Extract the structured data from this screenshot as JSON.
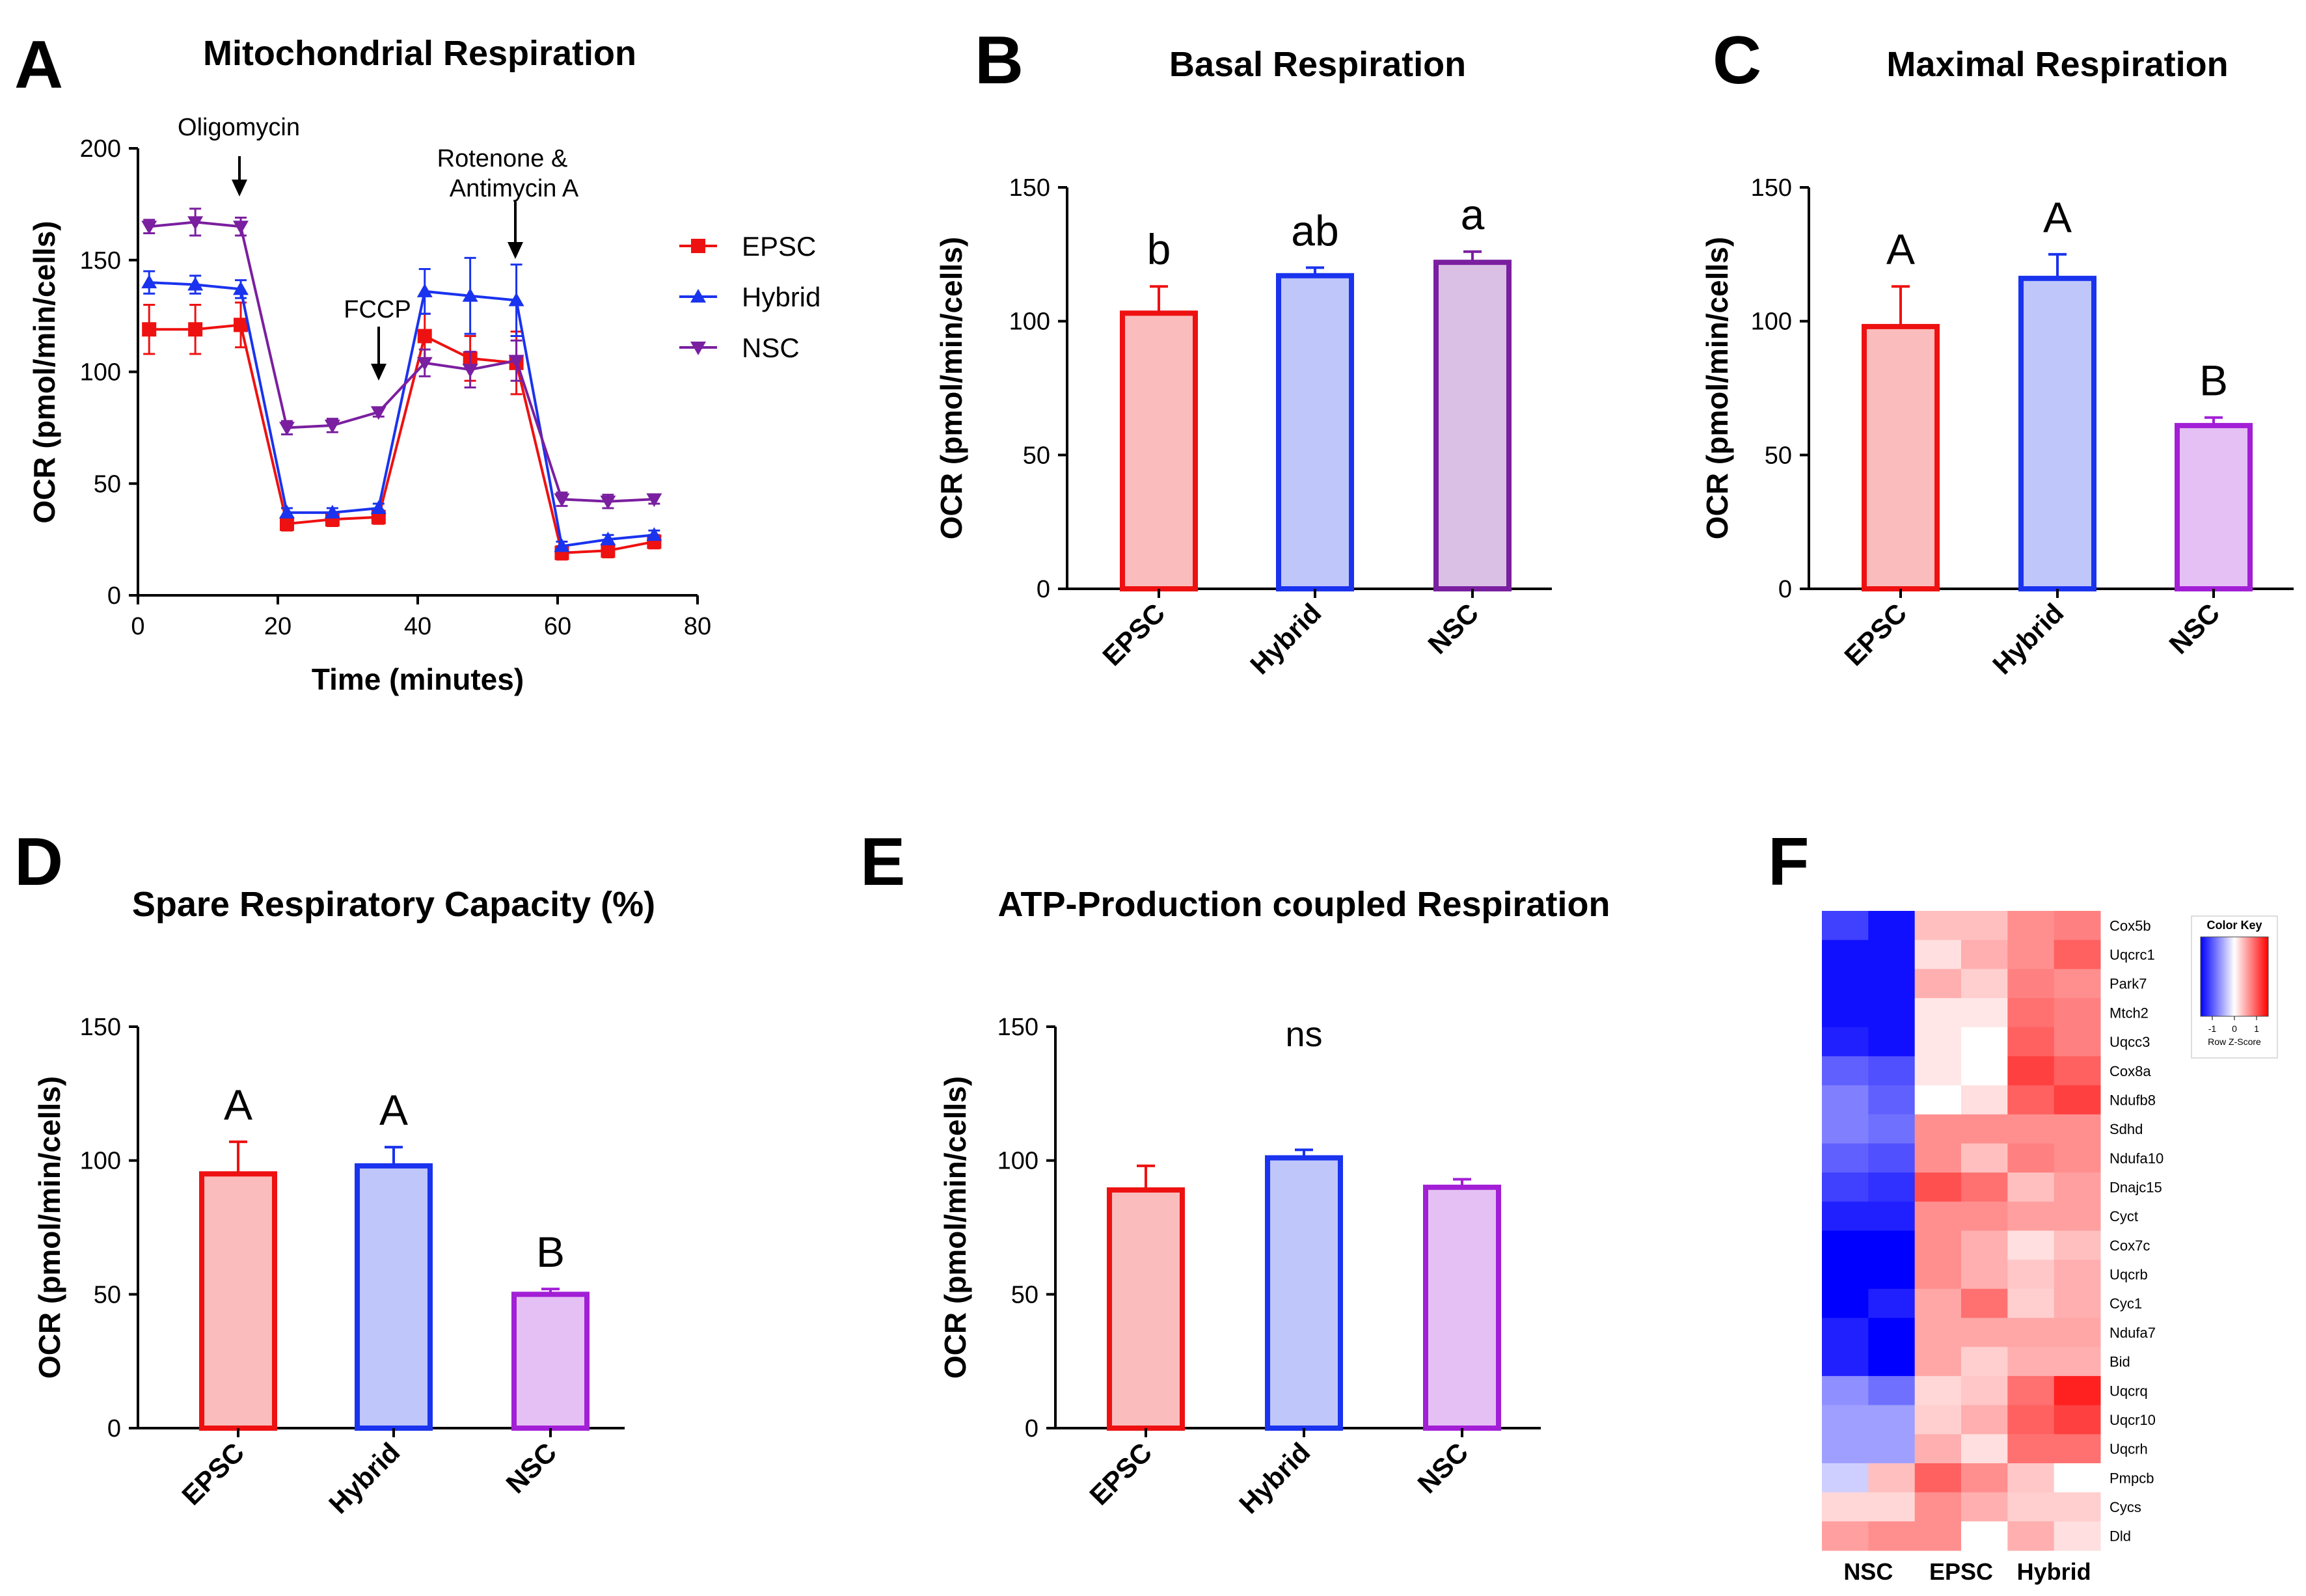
{
  "chart_data": [
    {
      "panel": "A",
      "type": "line",
      "title": "Mitochondrial Respiration",
      "xlabel": "Time (minutes)",
      "ylabel": "OCR (pmol/min/cells)",
      "xlim": [
        0,
        80
      ],
      "ylim": [
        0,
        200
      ],
      "xticks": [
        0,
        20,
        40,
        60,
        80
      ],
      "yticks": [
        0,
        50,
        100,
        150,
        200
      ],
      "x": [
        1.6,
        8.2,
        14.7,
        21.3,
        27.8,
        34.4,
        41.0,
        47.5,
        54.1,
        60.6,
        67.2,
        73.8
      ],
      "series": [
        {
          "name": "EPSC",
          "color": "#ee1111",
          "marker": "square",
          "values": [
            119,
            119,
            121,
            32,
            34,
            35,
            116,
            106,
            104,
            19,
            20,
            24
          ],
          "errors": [
            11,
            11,
            10,
            3,
            3,
            3,
            10,
            10,
            14,
            3,
            3,
            3
          ]
        },
        {
          "name": "Hybrid",
          "color": "#1a33ee",
          "marker": "triangle-up",
          "values": [
            140,
            139,
            137,
            37,
            37,
            39,
            136,
            134,
            132,
            22,
            25,
            27
          ],
          "errors": [
            5,
            4,
            4,
            2,
            2,
            2,
            10,
            17,
            16,
            2,
            2,
            2
          ]
        },
        {
          "name": "NSC",
          "color": "#7a1fa0",
          "marker": "triangle-down",
          "values": [
            165,
            167,
            165,
            75,
            76,
            82,
            104,
            101,
            105,
            43,
            42,
            43
          ],
          "errors": [
            3,
            6,
            4,
            3,
            3,
            2,
            6,
            8,
            9,
            3,
            3,
            2
          ]
        }
      ],
      "annotations": [
        {
          "text": "Oligomycin",
          "x": 14.7,
          "y": 165
        },
        {
          "text": "FCCP",
          "x": 34.4,
          "y": 82
        },
        {
          "text": "Rotenone &",
          "x": 54.1,
          "y": 132
        },
        {
          "text": "Antimycin  A",
          "x": 54.1,
          "y": 132
        }
      ],
      "legend": "right"
    },
    {
      "panel": "B",
      "type": "bar",
      "title": "Basal Respiration",
      "ylabel": "OCR (pmol/min/cells)",
      "categories": [
        "EPSC",
        "Hybrid",
        "NSC"
      ],
      "values": [
        103,
        117,
        122
      ],
      "errors": [
        10,
        3,
        4
      ],
      "significance": [
        "b",
        "ab",
        "a"
      ],
      "ylim": [
        0,
        150
      ],
      "yticks": [
        0,
        50,
        100,
        150
      ]
    },
    {
      "panel": "C",
      "type": "bar",
      "title": "Maximal Respiration",
      "ylabel": "OCR (pmol/min/cells)",
      "categories": [
        "EPSC",
        "Hybrid",
        "NSC"
      ],
      "values": [
        98,
        116,
        61
      ],
      "errors": [
        15,
        9,
        3
      ],
      "significance": [
        "A",
        "A",
        "B"
      ],
      "ylim": [
        0,
        150
      ],
      "yticks": [
        0,
        50,
        100,
        150
      ]
    },
    {
      "panel": "D",
      "type": "bar",
      "title": "Spare Respiratory Capacity (%)",
      "ylabel": "OCR (pmol/min/cells)",
      "categories": [
        "EPSC",
        "Hybrid",
        "NSC"
      ],
      "values": [
        95,
        98,
        50
      ],
      "errors": [
        12,
        7,
        2
      ],
      "significance": [
        "A",
        "A",
        "B"
      ],
      "ylim": [
        0,
        150
      ],
      "yticks": [
        0,
        50,
        100,
        150
      ]
    },
    {
      "panel": "E",
      "type": "bar",
      "title": "ATP-Production coupled Respiration",
      "ylabel": "OCR (pmol/min/cells)",
      "categories": [
        "EPSC",
        "Hybrid",
        "NSC"
      ],
      "values": [
        89,
        101,
        90
      ],
      "errors": [
        9,
        3,
        3
      ],
      "annotation": "ns",
      "ylim": [
        0,
        150
      ],
      "yticks": [
        0,
        50,
        100,
        150
      ]
    },
    {
      "panel": "F",
      "type": "heatmap",
      "column_groups": [
        "NSC",
        "EPSC",
        "Hybrid"
      ],
      "columns_per_group": 2,
      "rows": [
        "Cox5b",
        "Uqcrc1",
        "Park7",
        "Mtch2",
        "Uqcc3",
        "Cox8a",
        "Ndufb8",
        "Sdhd",
        "Ndufa10",
        "Dnajc15",
        "Cyct",
        "Cox7c",
        "Uqcrb",
        "Cyc1",
        "Ndufa7",
        "Bid",
        "Uqcrq",
        "Uqcr10",
        "Uqcrh",
        "Pmpcb",
        "Cycs",
        "Dld"
      ],
      "values": [
        [
          -1.2,
          -1.5,
          0.4,
          0.4,
          0.7,
          0.8
        ],
        [
          -1.5,
          -1.5,
          0.2,
          0.5,
          0.7,
          1.0
        ],
        [
          -1.5,
          -1.5,
          0.5,
          0.3,
          0.8,
          0.7
        ],
        [
          -1.5,
          -1.5,
          0.15,
          0.15,
          0.9,
          0.8
        ],
        [
          -1.4,
          -1.5,
          0.15,
          0.0,
          1.0,
          0.8
        ],
        [
          -1.0,
          -1.1,
          0.15,
          0.0,
          1.2,
          1.0
        ],
        [
          -0.8,
          -1.0,
          0.0,
          0.2,
          1.0,
          1.2
        ],
        [
          -0.8,
          -0.9,
          0.7,
          0.7,
          0.7,
          0.7
        ],
        [
          -1.0,
          -1.1,
          0.7,
          0.4,
          0.8,
          0.7
        ],
        [
          -1.2,
          -1.3,
          1.1,
          0.9,
          0.4,
          0.6
        ],
        [
          -1.4,
          -1.4,
          0.7,
          0.7,
          0.6,
          0.6
        ],
        [
          -1.6,
          -1.6,
          0.7,
          0.5,
          0.2,
          0.4
        ],
        [
          -1.6,
          -1.6,
          0.7,
          0.5,
          0.35,
          0.5
        ],
        [
          -1.6,
          -1.4,
          0.55,
          0.9,
          0.3,
          0.5
        ],
        [
          -1.4,
          -1.6,
          0.55,
          0.55,
          0.55,
          0.55
        ],
        [
          -1.4,
          -1.6,
          0.55,
          0.3,
          0.5,
          0.5
        ],
        [
          -0.7,
          -0.9,
          0.25,
          0.35,
          0.9,
          1.4
        ],
        [
          -0.6,
          -0.6,
          0.3,
          0.5,
          1.0,
          1.2
        ],
        [
          -0.6,
          -0.6,
          0.5,
          0.2,
          0.9,
          0.9
        ],
        [
          -0.3,
          0.4,
          1.0,
          0.7,
          0.35,
          0.0
        ],
        [
          0.25,
          0.25,
          0.7,
          0.5,
          0.3,
          0.3
        ],
        [
          0.6,
          0.7,
          0.7,
          0.0,
          0.5,
          0.2
        ]
      ],
      "color_key": {
        "title": "Color Key",
        "scale_label": "Row Z-Score",
        "ticks": [
          "-1",
          "0",
          "1"
        ],
        "low": "#0000ff",
        "mid": "#ffffff",
        "high": "#ff0000"
      }
    }
  ],
  "panel_letters": [
    "A",
    "B",
    "C",
    "D",
    "E",
    "F"
  ]
}
